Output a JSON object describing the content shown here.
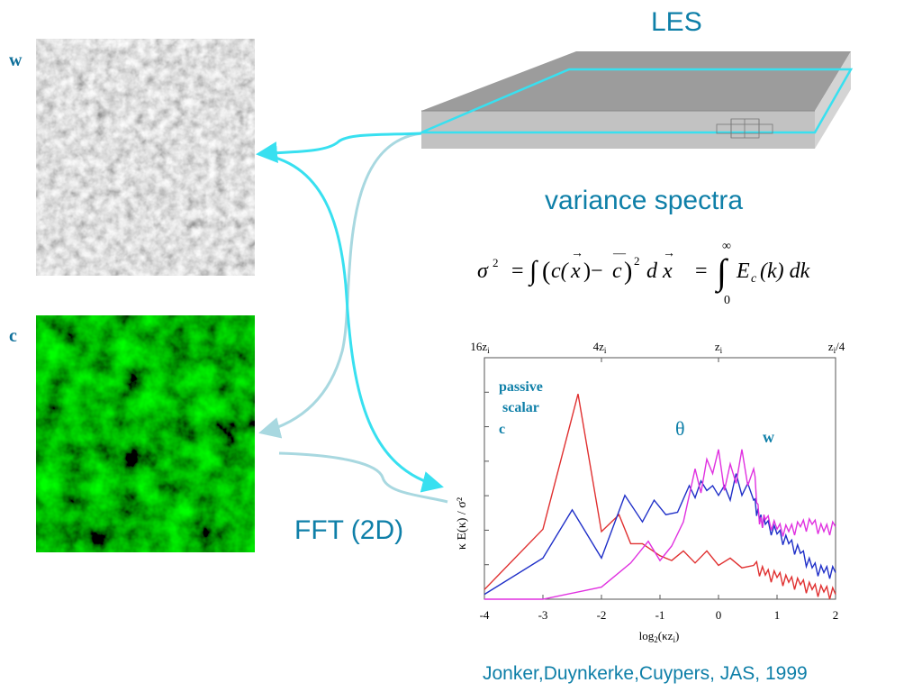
{
  "slide": {
    "les_label": "LES",
    "variance_label": "variance spectra",
    "fft_label": "FFT (2D)",
    "citation": "Jonker,Duynkerke,Cuypers, JAS, 1999"
  },
  "panels": {
    "w_label": "w",
    "c_label": "c"
  },
  "formula": {
    "sigma": "σ",
    "exp2": "2",
    "eq1": "=",
    "integrand_pre": "∫(c(",
    "x": "x",
    "minus": ")−",
    "cbar": "c",
    "close": ")",
    "dx": "d",
    "eq2": "=",
    "upper": "∞",
    "lower": "0",
    "E": "E",
    "sub_c": "c",
    "k_part": "(k) dk"
  },
  "chart": {
    "top_ticks": [
      {
        "base": "16z",
        "sub": "i",
        "tail": ""
      },
      {
        "base": "4z",
        "sub": "i",
        "tail": ""
      },
      {
        "base": "z",
        "sub": "i",
        "tail": ""
      },
      {
        "base": "z",
        "sub": "i",
        "tail": "/4"
      }
    ],
    "ylabel": "κ E(κ) / σ²",
    "xlabel_base": "log",
    "xlabel_sub": "2",
    "xlabel_mid": "(κz",
    "xlabel_sub2": "i",
    "xlabel_end": ")",
    "annotation_passive": "passive",
    "annotation_scalar": "scalar",
    "annotation_c": "c",
    "annotation_theta": "θ",
    "annotation_w": "w"
  },
  "chart_data": {
    "type": "line",
    "xlim": [
      -4,
      2
    ],
    "x_ticks": [
      "-4",
      "-3",
      "-2",
      "-1",
      "0",
      "1",
      "2"
    ],
    "top_ticks": [
      "16zi",
      "4zi",
      "zi",
      "zi/4"
    ],
    "ylim": [
      0,
      1
    ],
    "grid": false,
    "series": [
      {
        "name": "passive scalar c",
        "color": "#e03030",
        "x": [
          -4,
          -3,
          -2.4,
          -2,
          -1.7,
          -1.5,
          -1.3,
          -1,
          -0.8,
          -0.6,
          -0.4,
          -0.2,
          0,
          0.2,
          0.4,
          0.6,
          0.8,
          1,
          1.2,
          1.4,
          1.6,
          1.8,
          2
        ],
        "y": [
          0.04,
          0.29,
          0.85,
          0.28,
          0.35,
          0.23,
          0.23,
          0.18,
          0.16,
          0.2,
          0.15,
          0.2,
          0.14,
          0.17,
          0.13,
          0.14,
          0.1,
          0.09,
          0.07,
          0.06,
          0.04,
          0.03,
          0.02
        ]
      },
      {
        "name": "w",
        "color": "#1f2fc8",
        "x": [
          -4,
          -3,
          -2.5,
          -2,
          -1.6,
          -1.3,
          -1.1,
          -0.9,
          -0.7,
          -0.5,
          -0.4,
          -0.3,
          -0.2,
          -0.1,
          0,
          0.1,
          0.2,
          0.3,
          0.4,
          0.5,
          0.6,
          0.7,
          0.8,
          1,
          1.2,
          1.4,
          1.6,
          1.8,
          2
        ],
        "y": [
          0.02,
          0.17,
          0.37,
          0.17,
          0.43,
          0.32,
          0.41,
          0.35,
          0.36,
          0.47,
          0.42,
          0.49,
          0.45,
          0.47,
          0.43,
          0.47,
          0.41,
          0.52,
          0.43,
          0.48,
          0.41,
          0.33,
          0.31,
          0.27,
          0.23,
          0.19,
          0.13,
          0.11,
          0.11
        ]
      },
      {
        "name": "θ",
        "color": "#e030e0",
        "x": [
          -4,
          -3,
          -2,
          -1.5,
          -1.2,
          -1,
          -0.8,
          -0.6,
          -0.5,
          -0.4,
          -0.3,
          -0.2,
          -0.1,
          0,
          0.1,
          0.2,
          0.3,
          0.4,
          0.5,
          0.6,
          0.7,
          0.8,
          1,
          1.2,
          1.4,
          1.6,
          1.8,
          2
        ],
        "y": [
          0.0,
          0.0,
          0.05,
          0.15,
          0.24,
          0.16,
          0.22,
          0.32,
          0.43,
          0.54,
          0.44,
          0.58,
          0.52,
          0.62,
          0.45,
          0.56,
          0.48,
          0.62,
          0.47,
          0.54,
          0.31,
          0.33,
          0.29,
          0.28,
          0.3,
          0.31,
          0.28,
          0.3
        ]
      }
    ]
  },
  "colors": {
    "accent": "#0e7fa8",
    "cyan_arrow": "#38e0f0",
    "light_arrow": "#a8d8e0",
    "slab_top": "#9a9a9a",
    "slab_side": "#c0c0c0"
  }
}
